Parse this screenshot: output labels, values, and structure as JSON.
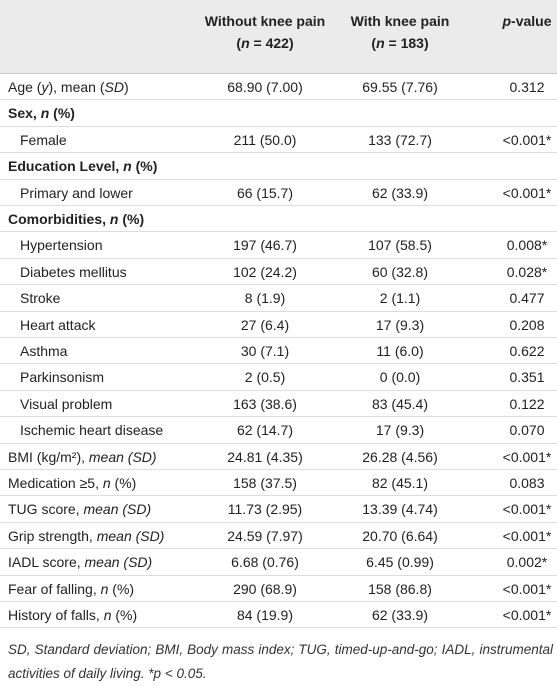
{
  "header": {
    "columns": [
      {
        "lines": [
          {
            "parts": [
              {
                "text": "Without knee pain"
              }
            ]
          },
          {
            "parts": [
              {
                "text": "("
              },
              {
                "text": "n",
                "italic": true
              },
              {
                "text": " = 422)"
              }
            ]
          }
        ]
      },
      {
        "lines": [
          {
            "parts": [
              {
                "text": "With knee pain"
              }
            ]
          },
          {
            "parts": [
              {
                "text": "("
              },
              {
                "text": "n",
                "italic": true
              },
              {
                "text": " = 183)"
              }
            ]
          }
        ]
      },
      {
        "lines": [
          {
            "parts": [
              {
                "text": "p",
                "italic": true
              },
              {
                "text": "-value"
              }
            ]
          }
        ]
      }
    ]
  },
  "table": {
    "rows": [
      {
        "label": {
          "parts": [
            {
              "text": "Age ("
            },
            {
              "text": "y",
              "italic": true
            },
            {
              "text": "), mean ("
            },
            {
              "text": "SD",
              "italic": true
            },
            {
              "text": ")"
            }
          ]
        },
        "cells": [
          "68.90 (7.00)",
          "69.55 (7.76)",
          "0.312"
        ]
      },
      {
        "style": "section",
        "label": {
          "parts": [
            {
              "text": "Sex, "
            },
            {
              "text": "n",
              "italic": true
            },
            {
              "text": " (%)"
            }
          ]
        }
      },
      {
        "style": "indent",
        "label": {
          "parts": [
            {
              "text": "Female"
            }
          ]
        },
        "cells": [
          "211 (50.0)",
          "133 (72.7)",
          "<0.001*"
        ]
      },
      {
        "style": "section",
        "label": {
          "parts": [
            {
              "text": "Education Level, "
            },
            {
              "text": "n",
              "italic": true
            },
            {
              "text": " (%)"
            }
          ]
        }
      },
      {
        "style": "indent",
        "label": {
          "parts": [
            {
              "text": "Primary and lower"
            }
          ]
        },
        "cells": [
          "66 (15.7)",
          "62 (33.9)",
          "<0.001*"
        ]
      },
      {
        "style": "section",
        "label": {
          "parts": [
            {
              "text": "Comorbidities, "
            },
            {
              "text": "n",
              "italic": true
            },
            {
              "text": " (%)"
            }
          ]
        }
      },
      {
        "style": "indent",
        "label": {
          "parts": [
            {
              "text": "Hypertension"
            }
          ]
        },
        "cells": [
          "197 (46.7)",
          "107 (58.5)",
          "0.008*"
        ]
      },
      {
        "style": "indent",
        "label": {
          "parts": [
            {
              "text": "Diabetes mellitus"
            }
          ]
        },
        "cells": [
          "102 (24.2)",
          "60 (32.8)",
          "0.028*"
        ]
      },
      {
        "style": "indent",
        "label": {
          "parts": [
            {
              "text": "Stroke"
            }
          ]
        },
        "cells": [
          "8 (1.9)",
          "2 (1.1)",
          "0.477"
        ]
      },
      {
        "style": "indent",
        "label": {
          "parts": [
            {
              "text": "Heart attack"
            }
          ]
        },
        "cells": [
          "27 (6.4)",
          "17 (9.3)",
          "0.208"
        ]
      },
      {
        "style": "indent",
        "label": {
          "parts": [
            {
              "text": "Asthma"
            }
          ]
        },
        "cells": [
          "30 (7.1)",
          "11 (6.0)",
          "0.622"
        ]
      },
      {
        "style": "indent",
        "label": {
          "parts": [
            {
              "text": "Parkinsonism"
            }
          ]
        },
        "cells": [
          "2 (0.5)",
          "0 (0.0)",
          "0.351"
        ]
      },
      {
        "style": "indent",
        "label": {
          "parts": [
            {
              "text": "Visual problem"
            }
          ]
        },
        "cells": [
          "163 (38.6)",
          "83 (45.4)",
          "0.122"
        ]
      },
      {
        "style": "indent",
        "label": {
          "parts": [
            {
              "text": "Ischemic heart disease"
            }
          ]
        },
        "cells": [
          "62 (14.7)",
          "17 (9.3)",
          "0.070"
        ]
      },
      {
        "label": {
          "parts": [
            {
              "text": "BMI (kg/m²), "
            },
            {
              "text": "mean (SD)",
              "italic": true
            }
          ]
        },
        "cells": [
          "24.81 (4.35)",
          "26.28 (4.56)",
          "<0.001*"
        ]
      },
      {
        "label": {
          "parts": [
            {
              "text": "Medication ≥5, "
            },
            {
              "text": "n",
              "italic": true
            },
            {
              "text": " (%)"
            }
          ]
        },
        "cells": [
          "158 (37.5)",
          "82 (45.1)",
          "0.083"
        ]
      },
      {
        "label": {
          "parts": [
            {
              "text": "TUG score, "
            },
            {
              "text": "mean (SD)",
              "italic": true
            }
          ]
        },
        "cells": [
          "11.73 (2.95)",
          "13.39 (4.74)",
          "<0.001*"
        ]
      },
      {
        "label": {
          "parts": [
            {
              "text": "Grip strength, "
            },
            {
              "text": "mean (SD)",
              "italic": true
            }
          ]
        },
        "cells": [
          "24.59 (7.97)",
          "20.70 (6.64)",
          "<0.001*"
        ]
      },
      {
        "label": {
          "parts": [
            {
              "text": "IADL score, "
            },
            {
              "text": "mean (SD)",
              "italic": true
            }
          ]
        },
        "cells": [
          "6.68 (0.76)",
          "6.45 (0.99)",
          "0.002*"
        ]
      },
      {
        "label": {
          "parts": [
            {
              "text": "Fear of falling, "
            },
            {
              "text": "n",
              "italic": true
            },
            {
              "text": " (%)"
            }
          ]
        },
        "cells": [
          "290 (68.9)",
          "158 (86.8)",
          "<0.001*"
        ]
      },
      {
        "label": {
          "parts": [
            {
              "text": "History of falls, "
            },
            {
              "text": "n",
              "italic": true
            },
            {
              "text": " (%)"
            }
          ]
        },
        "cells": [
          "84 (19.9)",
          "62 (33.9)",
          "<0.001*"
        ]
      }
    ]
  },
  "footnote": "SD, Standard deviation; BMI, Body mass index; TUG, timed-up-and-go; IADL, instrumental activities of daily living. *p < 0.05."
}
